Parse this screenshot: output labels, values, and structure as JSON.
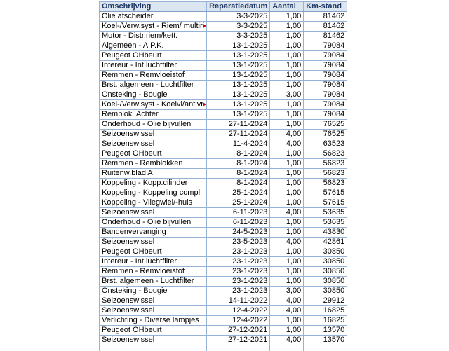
{
  "colors": {
    "header_background": "#DCE6F1",
    "header_text": "#1F3864",
    "grid_border": "#95B3D7",
    "overflow_marker": "#CC0000"
  },
  "icons": {
    "overflow_arrow": "▶"
  },
  "table": {
    "columns": [
      "Omschrijving",
      "Reparatiedatum",
      "Aantal",
      "Km-stand"
    ],
    "rows": [
      {
        "omschrijving": "Olie afscheider",
        "datum": "3-3-2025",
        "aantal": "1,00",
        "km": "81462",
        "truncated": false
      },
      {
        "omschrijving": "Koel-/Verw.syst - Riem/ multiri",
        "datum": "3-3-2025",
        "aantal": "1,00",
        "km": "81462",
        "truncated": true
      },
      {
        "omschrijving": "Motor - Distr.riem/kett.",
        "datum": "3-3-2025",
        "aantal": "1,00",
        "km": "81462",
        "truncated": false
      },
      {
        "omschrijving": "Algemeen - A.P.K.",
        "datum": "13-1-2025",
        "aantal": "1,00",
        "km": "79084",
        "truncated": false
      },
      {
        "omschrijving": "Peugeot OHbeurt",
        "datum": "13-1-2025",
        "aantal": "1,00",
        "km": "79084",
        "truncated": false
      },
      {
        "omschrijving": "Intereur - Int.luchtfilter",
        "datum": "13-1-2025",
        "aantal": "1,00",
        "km": "79084",
        "truncated": false
      },
      {
        "omschrijving": "Remmen - Remvloeistof",
        "datum": "13-1-2025",
        "aantal": "1,00",
        "km": "79084",
        "truncated": false
      },
      {
        "omschrijving": "Brst. algemeen - Luchtfilter",
        "datum": "13-1-2025",
        "aantal": "1,00",
        "km": "79084",
        "truncated": false
      },
      {
        "omschrijving": "Onsteking - Bougie",
        "datum": "13-1-2025",
        "aantal": "3,00",
        "km": "79084",
        "truncated": false
      },
      {
        "omschrijving": "Koel-/Verw.syst - Koelvl/antivr",
        "datum": "13-1-2025",
        "aantal": "1,00",
        "km": "79084",
        "truncated": true
      },
      {
        "omschrijving": "Remblok. Achter",
        "datum": "13-1-2025",
        "aantal": "1,00",
        "km": "79084",
        "truncated": false
      },
      {
        "omschrijving": "Onderhoud - Olie bijvullen",
        "datum": "27-11-2024",
        "aantal": "1,00",
        "km": "76525",
        "truncated": false
      },
      {
        "omschrijving": "Seizoenswissel",
        "datum": "27-11-2024",
        "aantal": "4,00",
        "km": "76525",
        "truncated": false
      },
      {
        "omschrijving": "Seizoenswissel",
        "datum": "11-4-2024",
        "aantal": "4,00",
        "km": "63523",
        "truncated": false
      },
      {
        "omschrijving": "Peugeot OHbeurt",
        "datum": "8-1-2024",
        "aantal": "1,00",
        "km": "56823",
        "truncated": false
      },
      {
        "omschrijving": "Remmen - Remblokken",
        "datum": "8-1-2024",
        "aantal": "1,00",
        "km": "56823",
        "truncated": false
      },
      {
        "omschrijving": "Ruitenw.blad A",
        "datum": "8-1-2024",
        "aantal": "1,00",
        "km": "56823",
        "truncated": false
      },
      {
        "omschrijving": "Koppeling - Kopp.cilinder",
        "datum": "8-1-2024",
        "aantal": "1,00",
        "km": "56823",
        "truncated": false
      },
      {
        "omschrijving": "Koppeling - Koppeling compl.",
        "datum": "25-1-2024",
        "aantal": "1,00",
        "km": "57615",
        "truncated": false
      },
      {
        "omschrijving": "Koppeling - Vliegwiel/-huis",
        "datum": "25-1-2024",
        "aantal": "1,00",
        "km": "57615",
        "truncated": false
      },
      {
        "omschrijving": "Seizoenswissel",
        "datum": "6-11-2023",
        "aantal": "4,00",
        "km": "53635",
        "truncated": false
      },
      {
        "omschrijving": "Onderhoud - Olie bijvullen",
        "datum": "6-11-2023",
        "aantal": "1,00",
        "km": "53635",
        "truncated": false
      },
      {
        "omschrijving": "Bandenvervanging",
        "datum": "24-5-2023",
        "aantal": "1,00",
        "km": "43830",
        "truncated": false
      },
      {
        "omschrijving": "Seizoenswissel",
        "datum": "23-5-2023",
        "aantal": "4,00",
        "km": "42861",
        "truncated": false
      },
      {
        "omschrijving": "Peugeot OHbeurt",
        "datum": "23-1-2023",
        "aantal": "1,00",
        "km": "30850",
        "truncated": false
      },
      {
        "omschrijving": "Intereur - Int.luchtfilter",
        "datum": "23-1-2023",
        "aantal": "1,00",
        "km": "30850",
        "truncated": false
      },
      {
        "omschrijving": "Remmen - Remvloeistof",
        "datum": "23-1-2023",
        "aantal": "1,00",
        "km": "30850",
        "truncated": false
      },
      {
        "omschrijving": "Brst. algemeen - Luchtfilter",
        "datum": "23-1-2023",
        "aantal": "1,00",
        "km": "30850",
        "truncated": false
      },
      {
        "omschrijving": "Onsteking - Bougie",
        "datum": "23-1-2023",
        "aantal": "3,00",
        "km": "30850",
        "truncated": false
      },
      {
        "omschrijving": "Seizoenswissel",
        "datum": "14-11-2022",
        "aantal": "4,00",
        "km": "29912",
        "truncated": false
      },
      {
        "omschrijving": "Seizoenswissel",
        "datum": "12-4-2022",
        "aantal": "4,00",
        "km": "16825",
        "truncated": false
      },
      {
        "omschrijving": "Verlichting - Diverse lampjes",
        "datum": "12-4-2022",
        "aantal": "1,00",
        "km": "16825",
        "truncated": false
      },
      {
        "omschrijving": "Peugeot OHbeurt",
        "datum": "27-12-2021",
        "aantal": "1,00",
        "km": "13570",
        "truncated": false
      },
      {
        "omschrijving": "Seizoenswissel",
        "datum": "27-12-2021",
        "aantal": "4,00",
        "km": "13570",
        "truncated": false
      }
    ]
  }
}
